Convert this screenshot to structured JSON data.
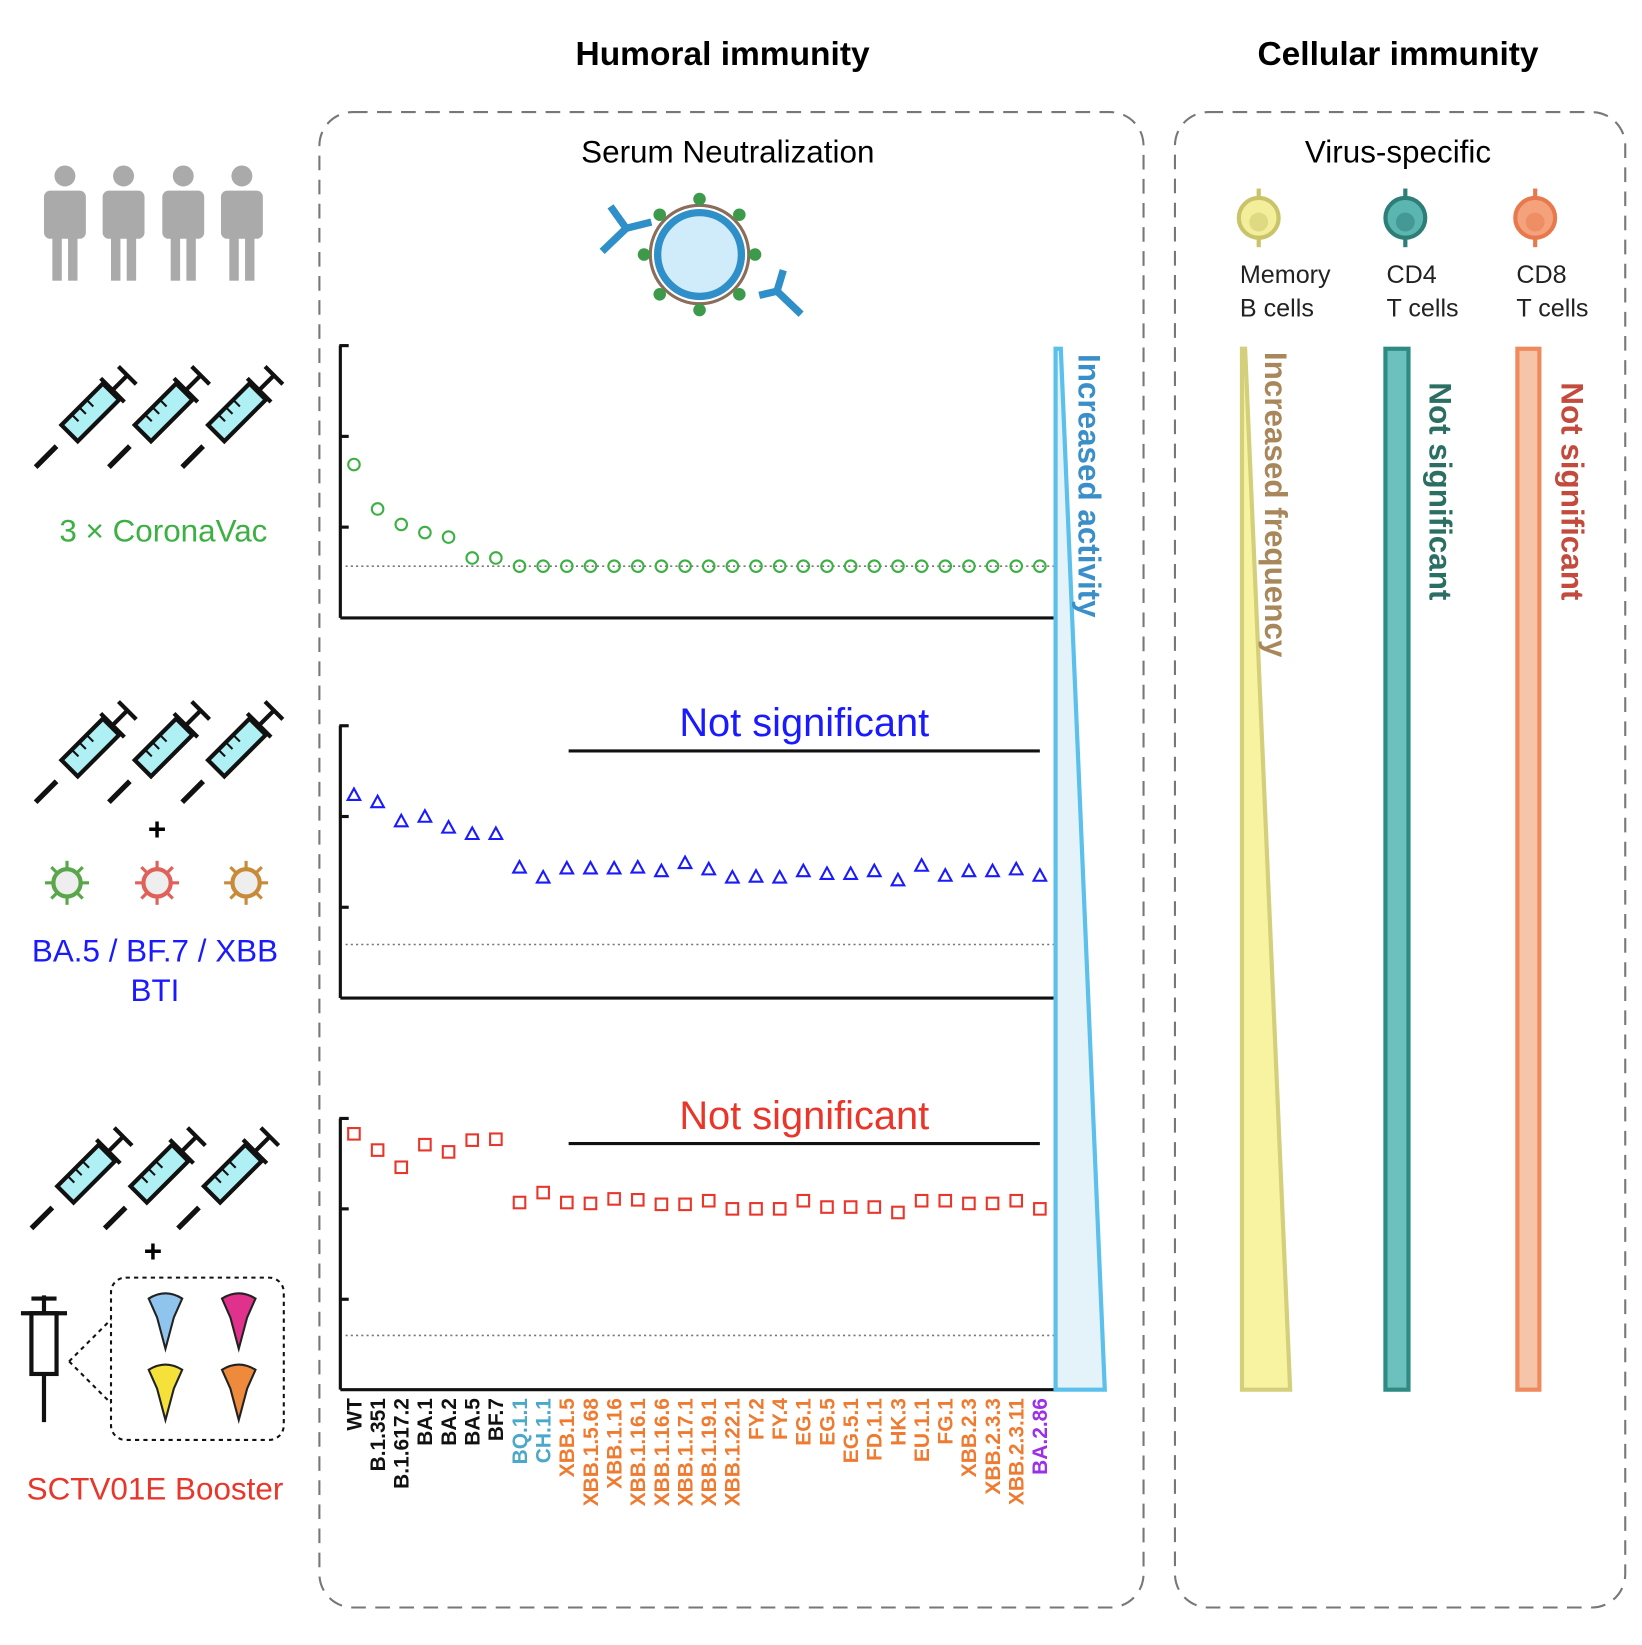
{
  "header": {
    "humoral_title": "Humoral immunity",
    "cellular_title": "Cellular immunity",
    "assay": "Serum Neutralization",
    "cellular_subtitle": "Virus-specific"
  },
  "cells": [
    {
      "lines": [
        "Memory",
        "B cells"
      ],
      "color": "#f3ee9a",
      "edge": "#c9c46a"
    },
    {
      "lines": [
        "CD4",
        "T cells"
      ],
      "color": "#5bb5b0",
      "edge": "#2e7e78"
    },
    {
      "lines": [
        "CD8",
        "T cells"
      ],
      "color": "#f4a27c",
      "edge": "#e8794c"
    }
  ],
  "cell_trends": [
    {
      "label": "Increased frequency",
      "color": "#a8875a"
    },
    {
      "label": "Not significant",
      "color": "#2b6e63"
    },
    {
      "label": "Not significant",
      "color": "#c24b3e"
    }
  ],
  "activity_label": "Increased activity",
  "groups": [
    {
      "lines": [
        "3 × CoronaVac"
      ],
      "color": "#3cb043"
    },
    {
      "lines": [
        "BA.5 / BF.7 / XBB",
        "BTI"
      ],
      "color": "#1a1aff"
    },
    {
      "lines": [
        "SCTV01E Booster"
      ],
      "color": "#e8362b"
    }
  ],
  "plus": "+",
  "variants": {
    "labels": [
      "WT",
      "B.1.351",
      "B.1.617.2",
      "BA.1",
      "BA.2",
      "BA.5",
      "BF.7",
      "BQ.1.1",
      "CH.1.1",
      "XBB.1.5",
      "XBB.1.5.68",
      "XBB.1.16",
      "XBB.1.16.1",
      "XBB.1.16.6",
      "XBB.1.17.1",
      "XBB.1.19.1",
      "XBB.1.22.1",
      "FY.2",
      "FY.4",
      "EG.1",
      "EG.5",
      "EG.5.1",
      "FD.1.1",
      "HK.3",
      "EU.1.1",
      "FG.1",
      "XBB.2.3",
      "XBB.2.3.3",
      "XBB.2.3.11",
      "BA.2.86"
    ],
    "colors": [
      "#111",
      "#111",
      "#111",
      "#111",
      "#111",
      "#111",
      "#111",
      "#4aa8c8",
      "#4aa8c8",
      "#ee7b30",
      "#ee7b30",
      "#ee7b30",
      "#ee7b30",
      "#ee7b30",
      "#ee7b30",
      "#ee7b30",
      "#ee7b30",
      "#ee7b30",
      "#ee7b30",
      "#ee7b30",
      "#ee7b30",
      "#ee7b30",
      "#ee7b30",
      "#ee7b30",
      "#ee7b30",
      "#ee7b30",
      "#ee7b30",
      "#ee7b30",
      "#ee7b30",
      "#9b30e8"
    ]
  },
  "panels": [
    {
      "marker": "circle",
      "color": "#3cb043",
      "ylim": [
        0,
        3
      ],
      "yticks": [
        1,
        2,
        3
      ],
      "threshold": 0.57,
      "values": [
        1.69,
        1.2,
        1.03,
        0.94,
        0.89,
        0.66,
        0.66,
        0.57,
        0.57,
        0.57,
        0.57,
        0.57,
        0.57,
        0.57,
        0.57,
        0.57,
        0.57,
        0.57,
        0.57,
        0.57,
        0.57,
        0.57,
        0.57,
        0.57,
        0.57,
        0.57,
        0.57,
        0.57,
        0.57,
        0.57
      ]
    },
    {
      "marker": "triangle",
      "color": "#1a1aff",
      "ylim": [
        0,
        3
      ],
      "yticks": [
        1,
        2,
        3
      ],
      "threshold": 0.59,
      "comparison": {
        "label": "Not significant",
        "color": "#1a1aff"
      },
      "values": [
        2.24,
        2.16,
        1.95,
        2.0,
        1.88,
        1.81,
        1.81,
        1.44,
        1.33,
        1.43,
        1.43,
        1.43,
        1.44,
        1.4,
        1.49,
        1.42,
        1.33,
        1.34,
        1.33,
        1.4,
        1.37,
        1.37,
        1.4,
        1.3,
        1.46,
        1.35,
        1.4,
        1.4,
        1.42,
        1.35
      ]
    },
    {
      "marker": "square",
      "color": "#e8362b",
      "ylim": [
        0,
        3
      ],
      "yticks": [
        1,
        2,
        3
      ],
      "threshold": 0.6,
      "comparison": {
        "label": "Not significant",
        "color": "#e8362b"
      },
      "values": [
        2.83,
        2.65,
        2.46,
        2.71,
        2.63,
        2.76,
        2.77,
        2.07,
        2.18,
        2.07,
        2.06,
        2.11,
        2.1,
        2.05,
        2.05,
        2.09,
        2.0,
        2.0,
        2.0,
        2.09,
        2.02,
        2.02,
        2.02,
        1.96,
        2.09,
        2.09,
        2.06,
        2.06,
        2.09,
        2.0
      ]
    }
  ]
}
